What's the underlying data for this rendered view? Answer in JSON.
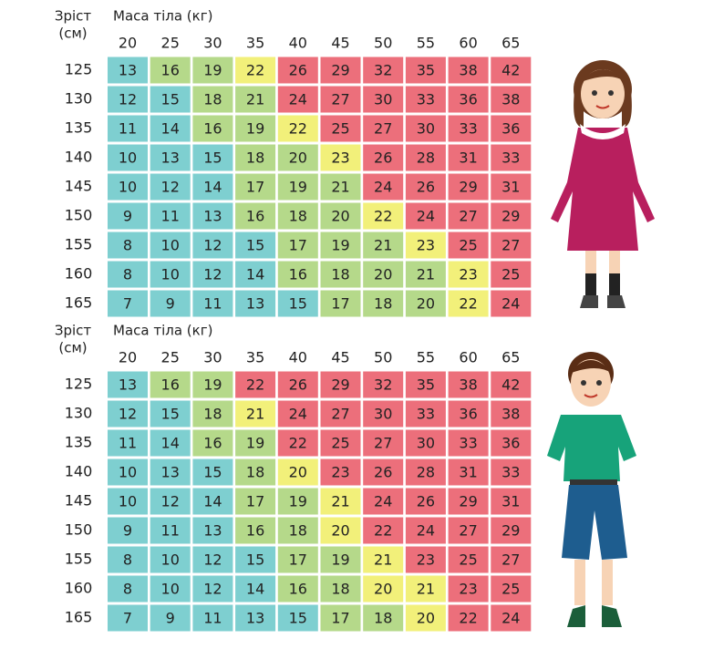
{
  "tables": [
    {
      "height_label": "Зріст",
      "height_unit": "(см)",
      "mass_label": "Маса тіла (кг)",
      "columns": [
        20,
        25,
        30,
        35,
        40,
        45,
        50,
        55,
        60,
        65
      ],
      "rows": [
        {
          "height": 125,
          "values": [
            13,
            16,
            19,
            22,
            26,
            29,
            32,
            35,
            38,
            42
          ],
          "colors": [
            "#7ecfd0",
            "#b5d98a",
            "#b5d98a",
            "#f2f07a",
            "#ec6f7b",
            "#ec6f7b",
            "#ec6f7b",
            "#ec6f7b",
            "#ec6f7b",
            "#ec6f7b"
          ]
        },
        {
          "height": 130,
          "values": [
            12,
            15,
            18,
            21,
            24,
            27,
            30,
            33,
            36,
            38
          ],
          "colors": [
            "#7ecfd0",
            "#7ecfd0",
            "#b5d98a",
            "#b5d98a",
            "#ec6f7b",
            "#ec6f7b",
            "#ec6f7b",
            "#ec6f7b",
            "#ec6f7b",
            "#ec6f7b"
          ]
        },
        {
          "height": 135,
          "values": [
            11,
            14,
            16,
            19,
            22,
            25,
            27,
            30,
            33,
            36
          ],
          "colors": [
            "#7ecfd0",
            "#7ecfd0",
            "#b5d98a",
            "#b5d98a",
            "#f2f07a",
            "#ec6f7b",
            "#ec6f7b",
            "#ec6f7b",
            "#ec6f7b",
            "#ec6f7b"
          ]
        },
        {
          "height": 140,
          "values": [
            10,
            13,
            15,
            18,
            20,
            23,
            26,
            28,
            31,
            33
          ],
          "colors": [
            "#7ecfd0",
            "#7ecfd0",
            "#7ecfd0",
            "#b5d98a",
            "#b5d98a",
            "#f2f07a",
            "#ec6f7b",
            "#ec6f7b",
            "#ec6f7b",
            "#ec6f7b"
          ]
        },
        {
          "height": 145,
          "values": [
            10,
            12,
            14,
            17,
            19,
            21,
            24,
            26,
            29,
            31
          ],
          "colors": [
            "#7ecfd0",
            "#7ecfd0",
            "#7ecfd0",
            "#b5d98a",
            "#b5d98a",
            "#b5d98a",
            "#ec6f7b",
            "#ec6f7b",
            "#ec6f7b",
            "#ec6f7b"
          ]
        },
        {
          "height": 150,
          "values": [
            9,
            11,
            13,
            16,
            18,
            20,
            22,
            24,
            27,
            29
          ],
          "colors": [
            "#7ecfd0",
            "#7ecfd0",
            "#7ecfd0",
            "#b5d98a",
            "#b5d98a",
            "#b5d98a",
            "#f2f07a",
            "#ec6f7b",
            "#ec6f7b",
            "#ec6f7b"
          ]
        },
        {
          "height": 155,
          "values": [
            8,
            10,
            12,
            15,
            17,
            19,
            21,
            23,
            25,
            27
          ],
          "colors": [
            "#7ecfd0",
            "#7ecfd0",
            "#7ecfd0",
            "#7ecfd0",
            "#b5d98a",
            "#b5d98a",
            "#b5d98a",
            "#f2f07a",
            "#ec6f7b",
            "#ec6f7b"
          ]
        },
        {
          "height": 160,
          "values": [
            8,
            10,
            12,
            14,
            16,
            18,
            20,
            21,
            23,
            25
          ],
          "colors": [
            "#7ecfd0",
            "#7ecfd0",
            "#7ecfd0",
            "#7ecfd0",
            "#b5d98a",
            "#b5d98a",
            "#b5d98a",
            "#b5d98a",
            "#f2f07a",
            "#ec6f7b"
          ]
        },
        {
          "height": 165,
          "values": [
            7,
            9,
            11,
            13,
            15,
            17,
            18,
            20,
            22,
            24
          ],
          "colors": [
            "#7ecfd0",
            "#7ecfd0",
            "#7ecfd0",
            "#7ecfd0",
            "#7ecfd0",
            "#b5d98a",
            "#b5d98a",
            "#b5d98a",
            "#f2f07a",
            "#ec6f7b"
          ]
        }
      ]
    },
    {
      "height_label": "Зріст",
      "height_unit": "(см)",
      "mass_label": "Маса тіла (кг)",
      "columns": [
        20,
        25,
        30,
        35,
        40,
        45,
        50,
        55,
        60,
        65
      ],
      "rows": [
        {
          "height": 125,
          "values": [
            13,
            16,
            19,
            22,
            26,
            29,
            32,
            35,
            38,
            42
          ],
          "colors": [
            "#7ecfd0",
            "#b5d98a",
            "#b5d98a",
            "#ec6f7b",
            "#ec6f7b",
            "#ec6f7b",
            "#ec6f7b",
            "#ec6f7b",
            "#ec6f7b",
            "#ec6f7b"
          ]
        },
        {
          "height": 130,
          "values": [
            12,
            15,
            18,
            21,
            24,
            27,
            30,
            33,
            36,
            38
          ],
          "colors": [
            "#7ecfd0",
            "#7ecfd0",
            "#b5d98a",
            "#f2f07a",
            "#ec6f7b",
            "#ec6f7b",
            "#ec6f7b",
            "#ec6f7b",
            "#ec6f7b",
            "#ec6f7b"
          ]
        },
        {
          "height": 135,
          "values": [
            11,
            14,
            16,
            19,
            22,
            25,
            27,
            30,
            33,
            36
          ],
          "colors": [
            "#7ecfd0",
            "#7ecfd0",
            "#b5d98a",
            "#b5d98a",
            "#ec6f7b",
            "#ec6f7b",
            "#ec6f7b",
            "#ec6f7b",
            "#ec6f7b",
            "#ec6f7b"
          ]
        },
        {
          "height": 140,
          "values": [
            10,
            13,
            15,
            18,
            20,
            23,
            26,
            28,
            31,
            33
          ],
          "colors": [
            "#7ecfd0",
            "#7ecfd0",
            "#7ecfd0",
            "#b5d98a",
            "#f2f07a",
            "#ec6f7b",
            "#ec6f7b",
            "#ec6f7b",
            "#ec6f7b",
            "#ec6f7b"
          ]
        },
        {
          "height": 145,
          "values": [
            10,
            12,
            14,
            17,
            19,
            21,
            24,
            26,
            29,
            31
          ],
          "colors": [
            "#7ecfd0",
            "#7ecfd0",
            "#7ecfd0",
            "#b5d98a",
            "#b5d98a",
            "#f2f07a",
            "#ec6f7b",
            "#ec6f7b",
            "#ec6f7b",
            "#ec6f7b"
          ]
        },
        {
          "height": 150,
          "values": [
            9,
            11,
            13,
            16,
            18,
            20,
            22,
            24,
            27,
            29
          ],
          "colors": [
            "#7ecfd0",
            "#7ecfd0",
            "#7ecfd0",
            "#b5d98a",
            "#b5d98a",
            "#f2f07a",
            "#ec6f7b",
            "#ec6f7b",
            "#ec6f7b",
            "#ec6f7b"
          ]
        },
        {
          "height": 155,
          "values": [
            8,
            10,
            12,
            15,
            17,
            19,
            21,
            23,
            25,
            27
          ],
          "colors": [
            "#7ecfd0",
            "#7ecfd0",
            "#7ecfd0",
            "#7ecfd0",
            "#b5d98a",
            "#b5d98a",
            "#f2f07a",
            "#ec6f7b",
            "#ec6f7b",
            "#ec6f7b"
          ]
        },
        {
          "height": 160,
          "values": [
            8,
            10,
            12,
            14,
            16,
            18,
            20,
            21,
            23,
            25
          ],
          "colors": [
            "#7ecfd0",
            "#7ecfd0",
            "#7ecfd0",
            "#7ecfd0",
            "#b5d98a",
            "#b5d98a",
            "#f2f07a",
            "#f2f07a",
            "#ec6f7b",
            "#ec6f7b"
          ]
        },
        {
          "height": 165,
          "values": [
            7,
            9,
            11,
            13,
            15,
            17,
            18,
            20,
            22,
            24
          ],
          "colors": [
            "#7ecfd0",
            "#7ecfd0",
            "#7ecfd0",
            "#7ecfd0",
            "#7ecfd0",
            "#b5d98a",
            "#b5d98a",
            "#f2f07a",
            "#ec6f7b",
            "#ec6f7b"
          ]
        }
      ]
    }
  ]
}
